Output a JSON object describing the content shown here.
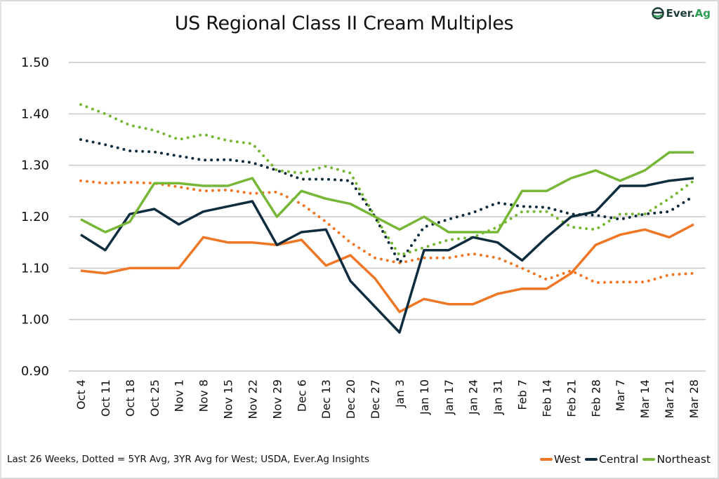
{
  "chart_data": {
    "type": "line",
    "title": "US Regional Class II Cream Multiples",
    "xlabel": "",
    "ylabel": "",
    "ylim": [
      0.9,
      1.5
    ],
    "yticks": [
      "1.50",
      "1.40",
      "1.30",
      "1.20",
      "1.10",
      "1.00",
      "0.90"
    ],
    "ytick_values": [
      1.5,
      1.4,
      1.3,
      1.2,
      1.1,
      1.0,
      0.9
    ],
    "grid": true,
    "legend_position": "bottom-right",
    "categories": [
      "Oct 4",
      "Oct 11",
      "Oct 18",
      "Oct 25",
      "Nov 1",
      "Nov 8",
      "Nov 15",
      "Nov 22",
      "Nov 29",
      "Dec 6",
      "Dec 13",
      "Dec 20",
      "Dec 27",
      "Jan 3",
      "Jan 10",
      "Jan 17",
      "Jan 24",
      "Jan 31",
      "Feb 7",
      "Feb 14",
      "Feb 21",
      "Feb 28",
      "Mar 7",
      "Mar 14",
      "Mar 21",
      "Mar 28"
    ],
    "series": [
      {
        "name": "West",
        "style": "solid",
        "color": "#ee7624",
        "values": [
          1.095,
          1.09,
          1.1,
          1.1,
          1.1,
          1.16,
          1.15,
          1.15,
          1.145,
          1.155,
          1.105,
          1.125,
          1.08,
          1.015,
          1.04,
          1.03,
          1.03,
          1.05,
          1.06,
          1.06,
          1.09,
          1.145,
          1.165,
          1.175,
          1.16,
          1.185
        ]
      },
      {
        "name": "Central",
        "style": "solid",
        "color": "#0e2d3f",
        "values": [
          1.165,
          1.135,
          1.205,
          1.215,
          1.185,
          1.21,
          1.22,
          1.23,
          1.145,
          1.17,
          1.175,
          1.075,
          1.025,
          0.975,
          1.135,
          1.135,
          1.16,
          1.15,
          1.115,
          1.16,
          1.2,
          1.21,
          1.26,
          1.26,
          1.27,
          1.275
        ]
      },
      {
        "name": "Northeast",
        "style": "solid",
        "color": "#77b737",
        "values": [
          1.195,
          1.17,
          1.19,
          1.265,
          1.265,
          1.26,
          1.26,
          1.275,
          1.2,
          1.25,
          1.235,
          1.225,
          1.2,
          1.175,
          1.2,
          1.17,
          1.17,
          1.17,
          1.25,
          1.25,
          1.275,
          1.29,
          1.27,
          1.29,
          1.325,
          1.325
        ]
      },
      {
        "name": "West 3YR Avg",
        "style": "dotted",
        "color": "#ee7624",
        "values": [
          1.27,
          1.265,
          1.267,
          1.265,
          1.258,
          1.25,
          1.252,
          1.245,
          1.248,
          1.225,
          1.19,
          1.15,
          1.12,
          1.11,
          1.12,
          1.12,
          1.128,
          1.12,
          1.1,
          1.078,
          1.095,
          1.072,
          1.073,
          1.073,
          1.087,
          1.09
        ]
      },
      {
        "name": "Central 5YR Avg",
        "style": "dotted",
        "color": "#0e2d3f",
        "values": [
          1.35,
          1.34,
          1.328,
          1.326,
          1.318,
          1.31,
          1.311,
          1.305,
          1.29,
          1.273,
          1.273,
          1.27,
          1.2,
          1.11,
          1.18,
          1.195,
          1.208,
          1.227,
          1.22,
          1.218,
          1.205,
          1.203,
          1.195,
          1.205,
          1.21,
          1.24
        ]
      },
      {
        "name": "Northeast 5YR Avg",
        "style": "dotted",
        "color": "#77b737",
        "values": [
          1.418,
          1.4,
          1.378,
          1.368,
          1.35,
          1.36,
          1.348,
          1.342,
          1.29,
          1.285,
          1.298,
          1.285,
          1.2,
          1.125,
          1.14,
          1.155,
          1.16,
          1.18,
          1.21,
          1.21,
          1.18,
          1.175,
          1.205,
          1.205,
          1.235,
          1.27
        ]
      }
    ],
    "legend": [
      {
        "label": "West",
        "color": "#ee7624"
      },
      {
        "label": "Central",
        "color": "#0e2d3f"
      },
      {
        "label": "Northeast",
        "color": "#77b737"
      }
    ],
    "annotation": "Last 26 Weeks, Dotted = 5YR Avg, 3YR Avg for West; USDA, Ever.Ag Insights"
  },
  "logo": {
    "text_main": "Ever.",
    "text_accent": "Ag",
    "icon": "ever-ag-logo-icon"
  }
}
